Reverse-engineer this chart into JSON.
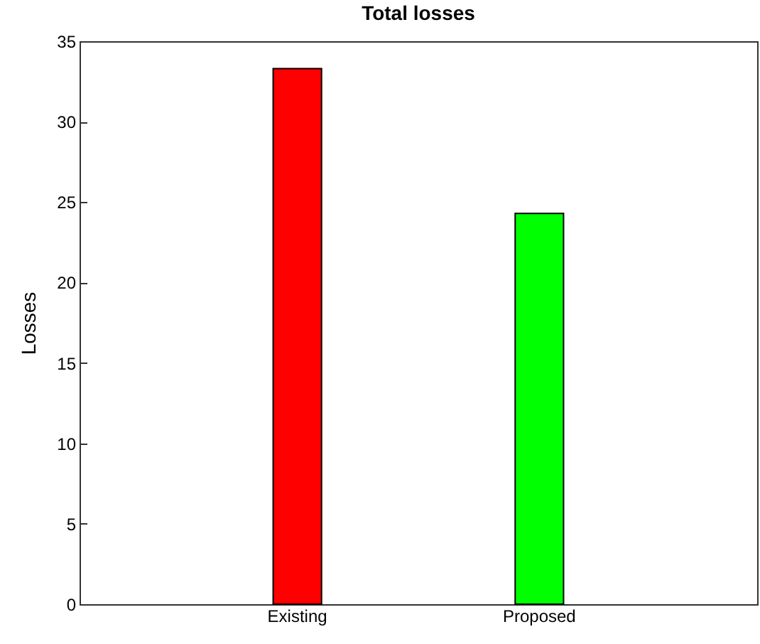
{
  "chart_data": {
    "type": "bar",
    "title": "Total losses",
    "ylabel": "Losses",
    "categories": [
      "Existing",
      "Proposed"
    ],
    "values": [
      33.3,
      24.3
    ],
    "colors": [
      "#ff0000",
      "#00ff00"
    ],
    "ylim": [
      0,
      35
    ],
    "yticks": [
      0,
      5,
      10,
      15,
      20,
      25,
      30,
      35
    ],
    "grid": false
  }
}
